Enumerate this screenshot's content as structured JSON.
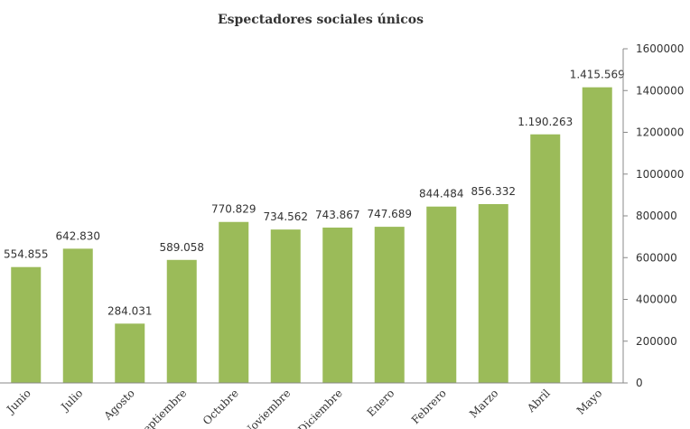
{
  "chart_data": {
    "type": "bar",
    "title": "Espectadores sociales únicos",
    "categories": [
      "Junio",
      "Julio",
      "Agosto",
      "Septiembre",
      "Octubre",
      "Noviembre",
      "Diciembre",
      "Enero",
      "Febrero",
      "Marzo",
      "Abril",
      "Mayo"
    ],
    "values": [
      554855,
      642830,
      284031,
      589058,
      770829,
      734562,
      743867,
      747689,
      844484,
      856332,
      1190263,
      1415569
    ],
    "value_labels": [
      "554.855",
      "642.830",
      "284.031",
      "589.058",
      "770.829",
      "734.562",
      "743.867",
      "747.689",
      "844.484",
      "856.332",
      "1.190.263",
      "1.415.569"
    ],
    "yticks": [
      0,
      200000,
      400000,
      600000,
      800000,
      1000000,
      1200000,
      1400000,
      1600000
    ],
    "ylim": [
      0,
      1600000
    ],
    "yaxis_position": "right",
    "grid": false,
    "bar_color": "#9bbb59"
  }
}
